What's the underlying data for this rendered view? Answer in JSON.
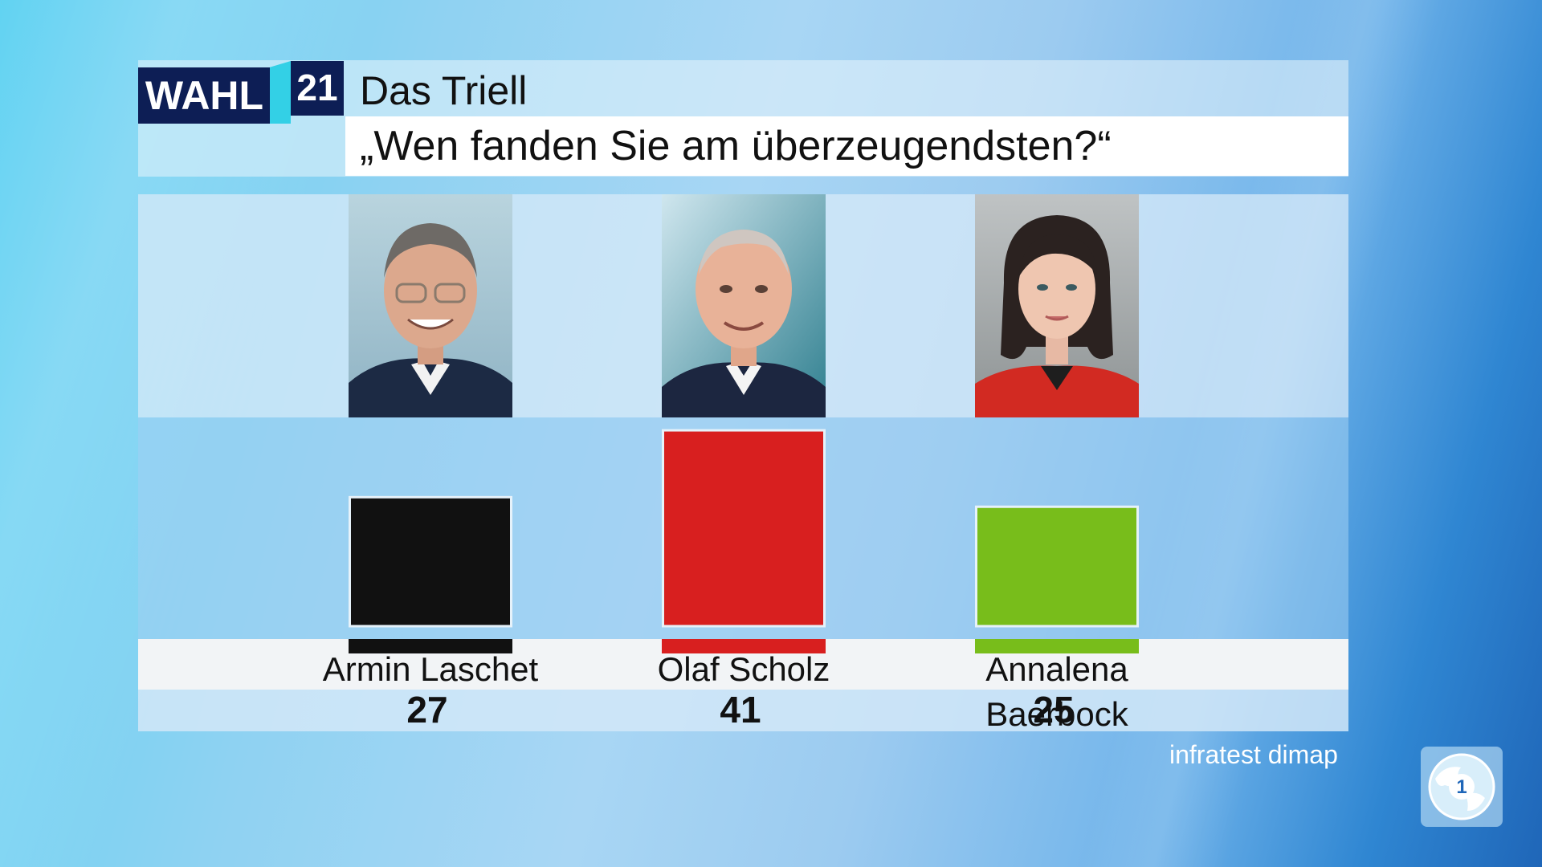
{
  "header": {
    "logo_text": "WAHL",
    "logo_number": "21",
    "title": "Das Triell",
    "question": "„Wen fanden Sie am überzeugendsten?“"
  },
  "source": "infratest dimap",
  "chart_data": {
    "type": "bar",
    "title": "„Wen fanden Sie am überzeugendsten?“",
    "categories": [
      "Armin Laschet",
      "Olaf Scholz",
      "Annalena Baerbock"
    ],
    "values": [
      27,
      41,
      25
    ],
    "value_labels": [
      "27",
      "41",
      "25"
    ],
    "colors": [
      "#111111",
      "#d81f1f",
      "#78bd1b"
    ],
    "legend": "none",
    "grid": false
  },
  "icons": {
    "broadcaster_logo": "ard-globe-icon"
  }
}
